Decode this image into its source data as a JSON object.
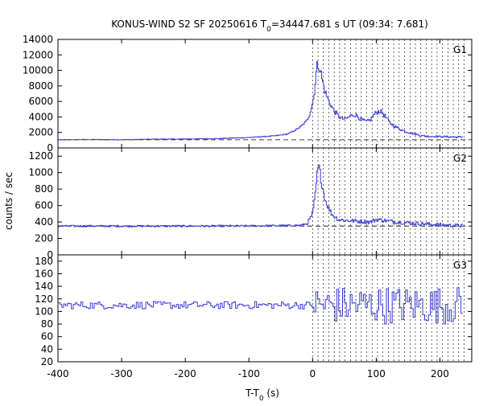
{
  "chart_data": {
    "type": "line",
    "title_main": "KONUS-WIND S2 SF 20250616 T",
    "title_sub": "0",
    "title_rest": "=34447.681 s UT (09:34: 7.681)",
    "xlabel_main": "T-T",
    "xlabel_sub": "0",
    "xlabel_unit": " (s)",
    "ylabel": "counts / sec",
    "xlim": [
      -400,
      250
    ],
    "x_ticks": [
      -400,
      -300,
      -200,
      -100,
      0,
      100,
      200
    ],
    "x_tick_labels": [
      "-400",
      "-300",
      "-200",
      "-100",
      "0",
      "100",
      "200"
    ],
    "trigger_marker_x": 0,
    "series_color": "#3a3ad8",
    "panels": [
      {
        "name": "G1",
        "ylim": [
          0,
          14000
        ],
        "y_ticks": [
          0,
          2000,
          4000,
          6000,
          8000,
          10000,
          12000,
          14000
        ],
        "y_tick_labels": [
          "0",
          "2000",
          "4000",
          "6000",
          "8000",
          "10000",
          "12000",
          "14000"
        ],
        "background_level": 1050,
        "points": [
          [
            -400,
            1050
          ],
          [
            -350,
            1080
          ],
          [
            -300,
            1060
          ],
          [
            -250,
            1120
          ],
          [
            -200,
            1150
          ],
          [
            -150,
            1200
          ],
          [
            -100,
            1350
          ],
          [
            -60,
            1550
          ],
          [
            -40,
            1800
          ],
          [
            -30,
            2200
          ],
          [
            -20,
            2700
          ],
          [
            -10,
            3500
          ],
          [
            -5,
            4500
          ],
          [
            0,
            6000
          ],
          [
            3,
            8000
          ],
          [
            6,
            10500
          ],
          [
            9,
            10800
          ],
          [
            12,
            9800
          ],
          [
            15,
            8500
          ],
          [
            20,
            7000
          ],
          [
            25,
            6000
          ],
          [
            30,
            5200
          ],
          [
            35,
            4600
          ],
          [
            40,
            4100
          ],
          [
            45,
            3800
          ],
          [
            50,
            3700
          ],
          [
            55,
            3900
          ],
          [
            60,
            4200
          ],
          [
            65,
            4300
          ],
          [
            70,
            4100
          ],
          [
            75,
            3700
          ],
          [
            80,
            3500
          ],
          [
            85,
            3400
          ],
          [
            90,
            3600
          ],
          [
            95,
            4200
          ],
          [
            100,
            4600
          ],
          [
            105,
            4800
          ],
          [
            110,
            4400
          ],
          [
            115,
            3900
          ],
          [
            120,
            3300
          ],
          [
            130,
            2700
          ],
          [
            140,
            2300
          ],
          [
            150,
            2000
          ],
          [
            160,
            1800
          ],
          [
            170,
            1600
          ],
          [
            180,
            1500
          ],
          [
            190,
            1500
          ],
          [
            200,
            1450
          ],
          [
            210,
            1450
          ],
          [
            220,
            1400
          ],
          [
            230,
            1400
          ]
        ],
        "noise_amplitude": 0.07
      },
      {
        "name": "G2",
        "ylim": [
          0,
          1300
        ],
        "y_ticks": [
          0,
          200,
          400,
          600,
          800,
          1000,
          1200
        ],
        "y_tick_labels": [
          "0",
          "200",
          "400",
          "600",
          "800",
          "1000",
          "1200"
        ],
        "background_level": 350,
        "points": [
          [
            -400,
            350
          ],
          [
            -300,
            350
          ],
          [
            -200,
            350
          ],
          [
            -100,
            352
          ],
          [
            -50,
            355
          ],
          [
            -20,
            358
          ],
          [
            -10,
            380
          ],
          [
            -5,
            430
          ],
          [
            0,
            520
          ],
          [
            3,
            700
          ],
          [
            6,
            950
          ],
          [
            9,
            1080
          ],
          [
            12,
            950
          ],
          [
            15,
            820
          ],
          [
            20,
            650
          ],
          [
            25,
            560
          ],
          [
            30,
            490
          ],
          [
            40,
            430
          ],
          [
            50,
            420
          ],
          [
            70,
            410
          ],
          [
            90,
            400
          ],
          [
            100,
            430
          ],
          [
            110,
            420
          ],
          [
            130,
            400
          ],
          [
            150,
            390
          ],
          [
            170,
            380
          ],
          [
            190,
            370
          ],
          [
            210,
            360
          ],
          [
            230,
            355
          ]
        ],
        "noise_amplitude": 0.06
      },
      {
        "name": "G3",
        "ylim": [
          20,
          190
        ],
        "y_ticks": [
          20,
          40,
          60,
          80,
          100,
          120,
          140,
          160,
          180
        ],
        "y_tick_labels": [
          "20",
          "40",
          "60",
          "80",
          "100",
          "120",
          "140",
          "160",
          "180"
        ],
        "background_level": 110,
        "points": [
          [
            -400,
            110
          ],
          [
            -300,
            110
          ],
          [
            -200,
            110
          ],
          [
            -100,
            110
          ],
          [
            0,
            110
          ],
          [
            100,
            110
          ],
          [
            200,
            110
          ],
          [
            230,
            110
          ]
        ],
        "noise_before": 6,
        "noise_after": 30
      }
    ]
  }
}
